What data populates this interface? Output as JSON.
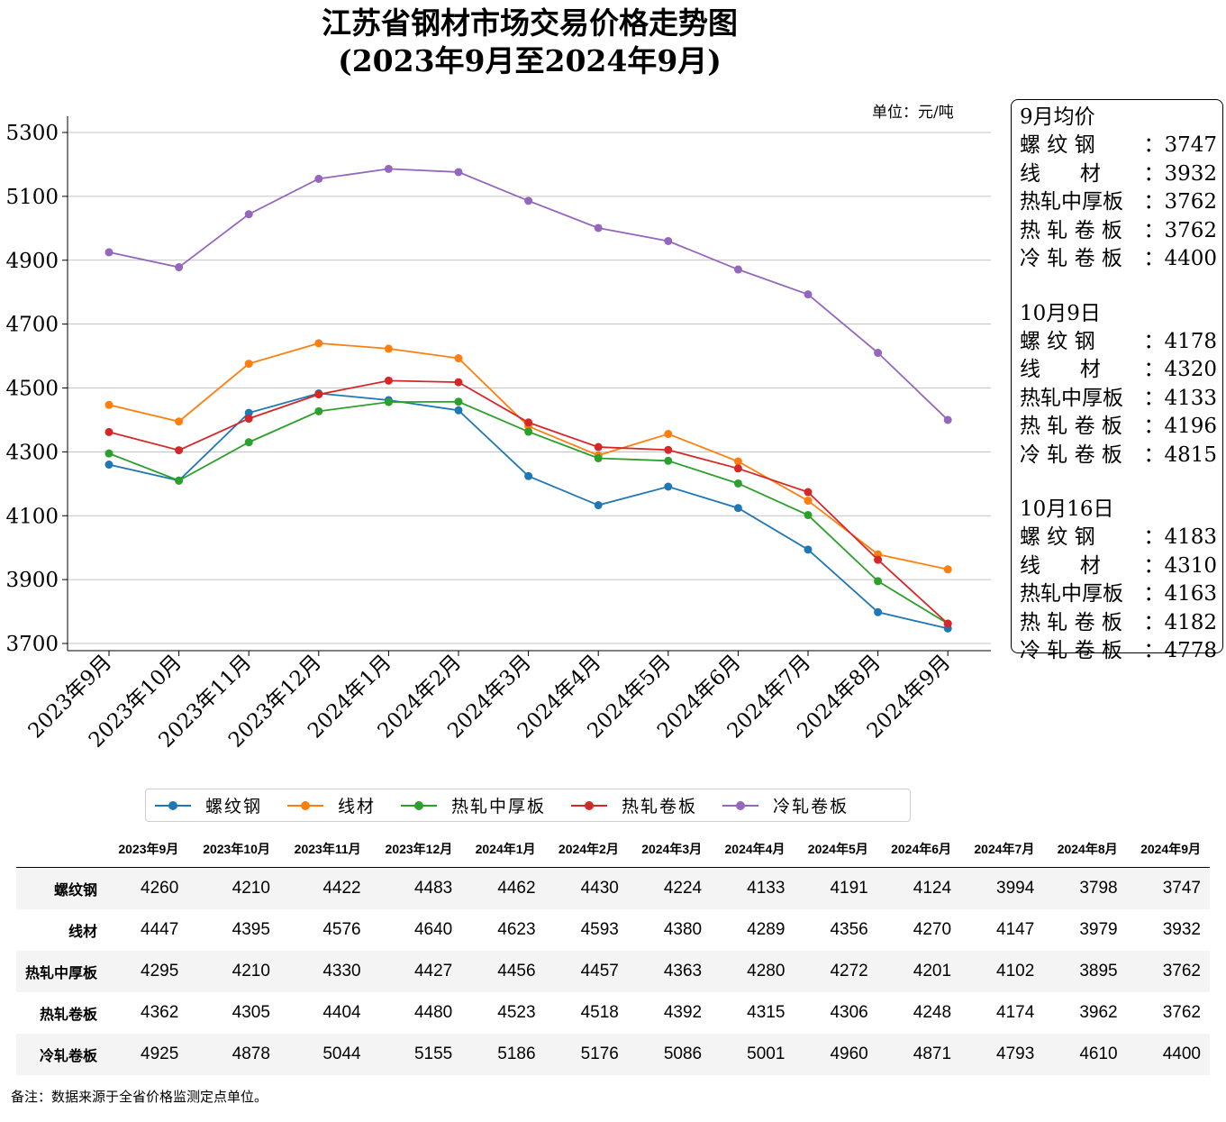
{
  "title_line1": "江苏省钢材市场交易价格走势图",
  "title_line2": "(2023年9月至2024年9月)",
  "unit_label": "单位：元/吨",
  "colors": {
    "螺纹钢": "#1f77b4",
    "线材": "#ff7f0e",
    "热轧中厚板": "#2ca02c",
    "热轧卷板": "#d62728",
    "冷轧卷板": "#9467bd"
  },
  "chart_data": {
    "type": "line",
    "title": "江苏省钢材市场交易价格走势图 (2023年9月至2024年9月)",
    "ylabel": "单位：元/吨",
    "ylim": [
      3700,
      5300
    ],
    "yticks": [
      3700,
      3900,
      4100,
      4300,
      4500,
      4700,
      4900,
      5100,
      5300
    ],
    "grid": "horizontal",
    "legend_position": "bottom",
    "categories": [
      "2023年9月",
      "2023年10月",
      "2023年11月",
      "2023年12月",
      "2024年1月",
      "2024年2月",
      "2024年3月",
      "2024年4月",
      "2024年5月",
      "2024年6月",
      "2024年7月",
      "2024年8月",
      "2024年9月"
    ],
    "series": [
      {
        "name": "螺纹钢",
        "values": [
          4260,
          4210,
          4422,
          4483,
          4462,
          4430,
          4224,
          4133,
          4191,
          4124,
          3994,
          3798,
          3747
        ]
      },
      {
        "name": "线材",
        "values": [
          4447,
          4395,
          4576,
          4640,
          4623,
          4593,
          4380,
          4289,
          4356,
          4270,
          4147,
          3979,
          3932
        ]
      },
      {
        "name": "热轧中厚板",
        "values": [
          4295,
          4210,
          4330,
          4427,
          4456,
          4457,
          4363,
          4280,
          4272,
          4201,
          4102,
          3895,
          3762
        ]
      },
      {
        "name": "热轧卷板",
        "values": [
          4362,
          4305,
          4404,
          4480,
          4523,
          4518,
          4392,
          4315,
          4306,
          4248,
          4174,
          3962,
          3762
        ]
      },
      {
        "name": "冷轧卷板",
        "values": [
          4925,
          4878,
          5044,
          5155,
          5186,
          5176,
          5086,
          5001,
          4960,
          4871,
          4793,
          4610,
          4400
        ]
      }
    ]
  },
  "info_box": {
    "groups": [
      {
        "heading": "9月均价",
        "rows": [
          {
            "name": "螺 纹 钢",
            "value": "：3747"
          },
          {
            "name": "线      材",
            "value": "：3932"
          },
          {
            "name": "热轧中厚板",
            "value": "：3762"
          },
          {
            "name": "热 轧 卷 板",
            "value": "：3762"
          },
          {
            "name": "冷 轧 卷 板",
            "value": "：4400"
          }
        ]
      },
      {
        "heading": "10月9日",
        "rows": [
          {
            "name": "螺 纹 钢",
            "value": "：4178"
          },
          {
            "name": "线      材",
            "value": "：4320"
          },
          {
            "name": "热轧中厚板",
            "value": "：4133"
          },
          {
            "name": "热 轧 卷 板",
            "value": "：4196"
          },
          {
            "name": "冷 轧 卷 板",
            "value": "：4815"
          }
        ]
      },
      {
        "heading": "10月16日",
        "rows": [
          {
            "name": "螺 纹 钢",
            "value": "：4183"
          },
          {
            "name": "线      材",
            "value": "：4310"
          },
          {
            "name": "热轧中厚板",
            "value": "：4163"
          },
          {
            "name": "热 轧 卷 板",
            "value": "：4182"
          },
          {
            "name": "冷 轧 卷 板",
            "value": "：4778"
          }
        ]
      }
    ]
  },
  "legend": [
    {
      "label": "螺纹钢",
      "color": "#1f77b4"
    },
    {
      "label": "线材",
      "color": "#ff7f0e"
    },
    {
      "label": "热轧中厚板",
      "color": "#2ca02c"
    },
    {
      "label": "热轧卷板",
      "color": "#d62728"
    },
    {
      "label": "冷轧卷板",
      "color": "#9467bd"
    }
  ],
  "table": {
    "headers": [
      "2023年9月",
      "2023年10月",
      "2023年11月",
      "2023年12月",
      "2024年1月",
      "2024年2月",
      "2024年3月",
      "2024年4月",
      "2024年5月",
      "2024年6月",
      "2024年7月",
      "2024年8月",
      "2024年9月"
    ],
    "rows": [
      {
        "label": "螺纹钢",
        "values": [
          4260,
          4210,
          4422,
          4483,
          4462,
          4430,
          4224,
          4133,
          4191,
          4124,
          3994,
          3798,
          3747
        ]
      },
      {
        "label": "线材",
        "values": [
          4447,
          4395,
          4576,
          4640,
          4623,
          4593,
          4380,
          4289,
          4356,
          4270,
          4147,
          3979,
          3932
        ]
      },
      {
        "label": "热轧中厚板",
        "values": [
          4295,
          4210,
          4330,
          4427,
          4456,
          4457,
          4363,
          4280,
          4272,
          4201,
          4102,
          3895,
          3762
        ]
      },
      {
        "label": "热轧卷板",
        "values": [
          4362,
          4305,
          4404,
          4480,
          4523,
          4518,
          4392,
          4315,
          4306,
          4248,
          4174,
          3962,
          3762
        ]
      },
      {
        "label": "冷轧卷板",
        "values": [
          4925,
          4878,
          5044,
          5155,
          5186,
          5176,
          5086,
          5001,
          4960,
          4871,
          4793,
          4610,
          4400
        ]
      }
    ]
  },
  "footnote": "备注：数据来源于全省价格监测定点单位。"
}
